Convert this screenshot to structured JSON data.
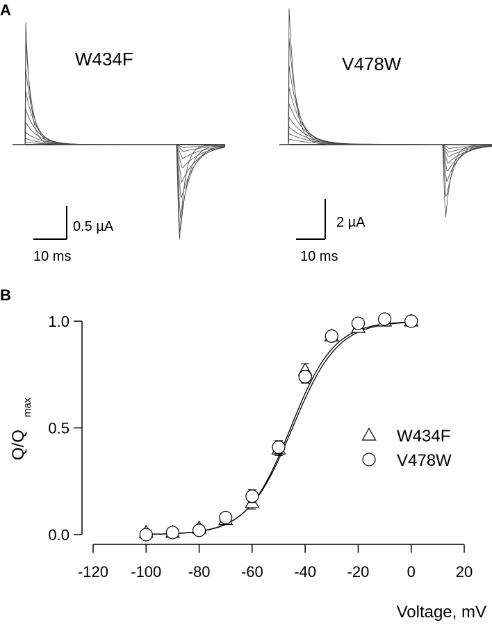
{
  "panel_a": {
    "letter": "A",
    "traces": [
      {
        "label": "W434F",
        "scale_current": "0.5 µA",
        "scale_time": "10 ms",
        "on_peaks": [
          1.0,
          0.85,
          0.62,
          0.44,
          0.29,
          0.18,
          0.1,
          0.05,
          0.02
        ],
        "off_peaks": [
          1.0,
          0.92,
          0.75,
          0.55,
          0.38,
          0.24,
          0.14,
          0.07,
          0.03
        ]
      },
      {
        "label": "V478W",
        "scale_current": "2 µA",
        "scale_time": "10 ms",
        "on_peaks": [
          1.0,
          0.78,
          0.58,
          0.42,
          0.3,
          0.2,
          0.13,
          0.08,
          0.04
        ],
        "off_peaks": [
          1.0,
          0.72,
          0.5,
          0.36,
          0.25,
          0.16,
          0.1,
          0.05
        ]
      }
    ]
  },
  "panel_b": {
    "letter": "B",
    "ylabel_main": "Q/Q",
    "ylabel_sub": "max",
    "xlabel": "Voltage,  mV"
  },
  "chart_data": {
    "type": "scatter",
    "xlabel": "Voltage,  mV",
    "ylabel": "Q/Qmax",
    "xlim": [
      -120,
      20
    ],
    "ylim": [
      0.0,
      1.0
    ],
    "xticks": [
      -120,
      -100,
      -80,
      -60,
      -40,
      -20,
      0,
      20
    ],
    "yticks": [
      0.0,
      0.5,
      1.0
    ],
    "ytick_labels": [
      "0.0",
      "0.5",
      "1.0"
    ],
    "legend_position": "right",
    "series": [
      {
        "name": "W434F",
        "marker": "triangle",
        "x": [
          -100,
          -90,
          -80,
          -70,
          -60,
          -50,
          -40,
          -30,
          -20,
          -10,
          0
        ],
        "y": [
          0.01,
          0.01,
          0.03,
          0.07,
          0.15,
          0.4,
          0.77,
          0.93,
          0.97,
          1.0,
          1.0
        ],
        "err": [
          0.01,
          0.01,
          0.01,
          0.02,
          0.03,
          0.03,
          0.03,
          0.02,
          0.02,
          0.02,
          0.01
        ],
        "fit_v_half": -45.5,
        "fit_slope": 8.2
      },
      {
        "name": "V478W",
        "marker": "circle",
        "x": [
          -100,
          -90,
          -80,
          -70,
          -60,
          -50,
          -40,
          -30,
          -20,
          -10,
          0
        ],
        "y": [
          0.0,
          0.01,
          0.02,
          0.08,
          0.18,
          0.41,
          0.74,
          0.93,
          0.99,
          1.01,
          1.0
        ],
        "err": [
          0.01,
          0.01,
          0.01,
          0.02,
          0.03,
          0.03,
          0.03,
          0.02,
          0.02,
          0.02,
          0.01
        ],
        "fit_v_half": -44.8,
        "fit_slope": 8.5
      }
    ]
  }
}
